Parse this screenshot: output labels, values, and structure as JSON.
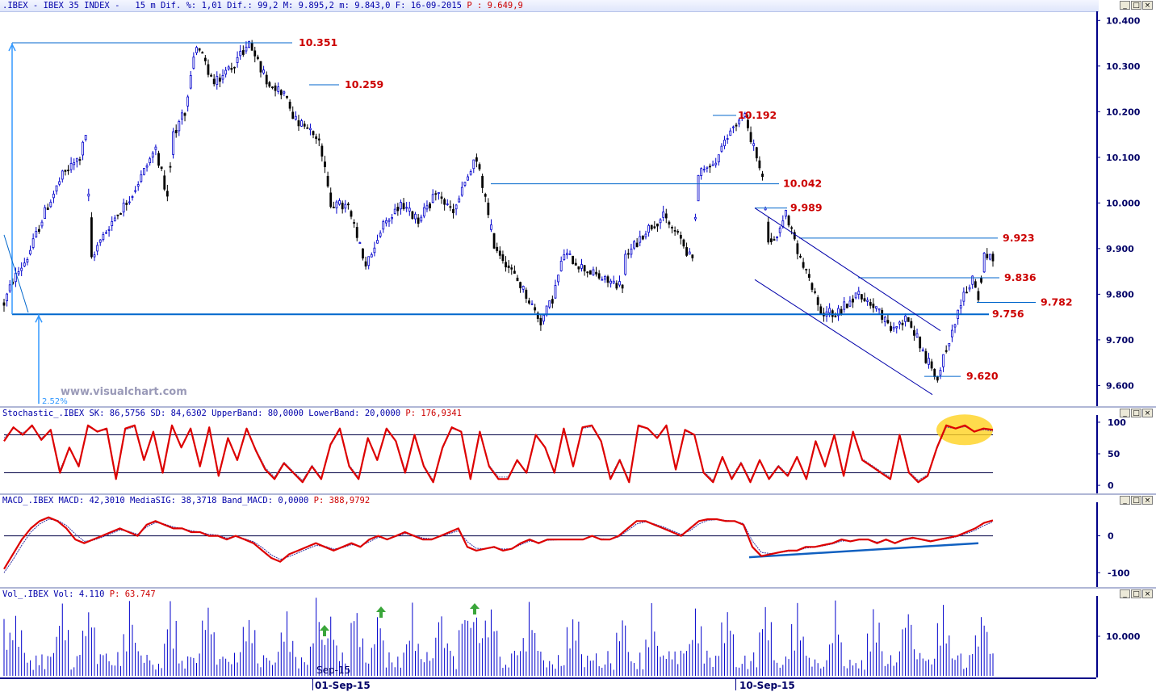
{
  "header": {
    "symbol": ".IBEX - IBEX 35 INDEX -",
    "interval": "15 m",
    "stats": "Dif. %: 1,01 Dif.: 99,2 M: 9.895,2 m: 9.843,0 F: 16-09-2015",
    "last": "P : 9.649,9"
  },
  "watermark": "www.visualchart.com",
  "pct_label": "2.52%",
  "panels": {
    "stochastic": {
      "prefix": "Stochastic_.IBEX SK: 86,5756 SD: 84,6302 UpperBand: 80,0000 LowerBand: 20,0000",
      "last": "P: 176,9341"
    },
    "macd": {
      "prefix": "MACD_.IBEX MACD: 42,3010 MediaSIG: 38,3718 Band_MACD: 0,0000",
      "last": "P: 388,9792"
    },
    "volume": {
      "prefix": "Vol_.IBEX Vol: 4.110",
      "last": "P: 63.747"
    }
  },
  "window_buttons": [
    "_",
    "□",
    "×"
  ],
  "x_axis": {
    "labels": [
      "01-Sep-15",
      "10-Sep-15"
    ],
    "overlay_label": "Sep-15"
  },
  "chart_data": [
    {
      "type": "candlestick",
      "panel": "price",
      "y_axis_ticks": [
        9600,
        9700,
        9800,
        9900,
        10000,
        10100,
        10200,
        10300,
        10400
      ],
      "y_axis_labels": [
        "9.600",
        "9.700",
        "9.800",
        "9.900",
        "10.000",
        "10.100",
        "10.200",
        "10.300",
        "10.400"
      ],
      "ylim": [
        9560,
        10420
      ],
      "bar_count": 340,
      "colors": {
        "up": "#0000cc",
        "down": "#000000",
        "levels": "#0066cc",
        "level_text": "#cc0000"
      },
      "anchors": [
        [
          0,
          9780
        ],
        [
          3,
          9830
        ],
        [
          8,
          9880
        ],
        [
          14,
          9980
        ],
        [
          20,
          10060
        ],
        [
          26,
          10100
        ],
        [
          28,
          10150
        ],
        [
          30,
          9880
        ],
        [
          36,
          9950
        ],
        [
          44,
          10020
        ],
        [
          52,
          10120
        ],
        [
          56,
          10010
        ],
        [
          58,
          10150
        ],
        [
          62,
          10200
        ],
        [
          66,
          10350
        ],
        [
          72,
          10260
        ],
        [
          78,
          10300
        ],
        [
          84,
          10350
        ],
        [
          90,
          10270
        ],
        [
          96,
          10240
        ],
        [
          100,
          10180
        ],
        [
          108,
          10140
        ],
        [
          112,
          10000
        ],
        [
          118,
          9990
        ],
        [
          124,
          9860
        ],
        [
          130,
          9950
        ],
        [
          136,
          10000
        ],
        [
          142,
          9960
        ],
        [
          148,
          10020
        ],
        [
          154,
          9980
        ],
        [
          162,
          10100
        ],
        [
          168,
          9910
        ],
        [
          174,
          9850
        ],
        [
          178,
          9810
        ],
        [
          184,
          9740
        ],
        [
          188,
          9790
        ],
        [
          192,
          9890
        ],
        [
          198,
          9860
        ],
        [
          206,
          9830
        ],
        [
          212,
          9820
        ],
        [
          213,
          9880
        ],
        [
          220,
          9940
        ],
        [
          226,
          9970
        ],
        [
          232,
          9920
        ],
        [
          236,
          9870
        ],
        [
          238,
          10060
        ],
        [
          244,
          10090
        ],
        [
          250,
          10170
        ],
        [
          254,
          10190
        ],
        [
          258,
          10100
        ],
        [
          260,
          10050
        ],
        [
          262,
          9920
        ],
        [
          266,
          9940
        ],
        [
          268,
          9980
        ],
        [
          272,
          9890
        ],
        [
          276,
          9830
        ],
        [
          280,
          9760
        ],
        [
          286,
          9760
        ],
        [
          292,
          9800
        ],
        [
          298,
          9780
        ],
        [
          304,
          9720
        ],
        [
          310,
          9750
        ],
        [
          316,
          9660
        ],
        [
          320,
          9620
        ],
        [
          324,
          9700
        ],
        [
          328,
          9780
        ],
        [
          332,
          9836
        ],
        [
          334,
          9790
        ],
        [
          336,
          9880
        ],
        [
          340,
          9880
        ]
      ],
      "levels": [
        {
          "value": 10351,
          "label": "10.351"
        },
        {
          "value": 10259,
          "label": "10.259"
        },
        {
          "value": 10192,
          "label": "10.192"
        },
        {
          "value": 10042,
          "label": "10.042"
        },
        {
          "value": 9989,
          "label": "9.989"
        },
        {
          "value": 9923,
          "label": "9.923"
        },
        {
          "value": 9836,
          "label": "9.836"
        },
        {
          "value": 9782,
          "label": "9.782"
        },
        {
          "value": 9756,
          "label": "9.756"
        },
        {
          "value": 9620,
          "label": "9.620"
        }
      ]
    },
    {
      "type": "line",
      "panel": "stochastic",
      "y_axis_ticks": [
        0,
        50,
        100
      ],
      "y_axis_labels": [
        "0",
        "50",
        "100"
      ],
      "ylim": [
        -5,
        105
      ],
      "bands": [
        20,
        80
      ],
      "series": [
        {
          "color": "#dd0000",
          "values": [
            70,
            92,
            80,
            95,
            72,
            88,
            20,
            60,
            30,
            95,
            85,
            90,
            10,
            90,
            95,
            40,
            85,
            20,
            95,
            60,
            90,
            30,
            92,
            15,
            75,
            40,
            90,
            55,
            25,
            10,
            35,
            20,
            5,
            30,
            10,
            65,
            90,
            30,
            10,
            75,
            40,
            90,
            70,
            20,
            80,
            30,
            5,
            60,
            92,
            85,
            10,
            85,
            30,
            10,
            10,
            40,
            20,
            80,
            60,
            20,
            90,
            30,
            92,
            95,
            70,
            10,
            40,
            5,
            95,
            90,
            75,
            95,
            25,
            88,
            80,
            20,
            5,
            45,
            10,
            35,
            5,
            40,
            10,
            30,
            15,
            45,
            10,
            70,
            30,
            80,
            15,
            85,
            40,
            30,
            20,
            10,
            80,
            20,
            5,
            15,
            60,
            95,
            90,
            95,
            85,
            90,
            88
          ]
        },
        {
          "color": "#6060a0",
          "values": [
            75,
            90,
            83,
            93,
            75,
            86,
            25,
            58,
            33,
            93,
            86,
            88,
            14,
            88,
            93,
            43,
            83,
            24,
            93,
            62,
            88,
            33,
            90,
            18,
            73,
            42,
            88,
            57,
            28,
            13,
            37,
            22,
            8,
            32,
            12,
            63,
            88,
            32,
            13,
            73,
            42,
            88,
            70,
            24,
            78,
            32,
            8,
            58,
            90,
            85,
            13,
            83,
            32,
            13,
            13,
            38,
            22,
            78,
            60,
            22,
            88,
            32,
            90,
            93,
            70,
            13,
            42,
            8,
            93,
            90,
            76,
            93,
            27,
            86,
            80,
            22,
            8,
            43,
            13,
            37,
            8,
            40,
            12,
            32,
            17,
            45,
            12,
            68,
            32,
            78,
            17,
            83,
            42,
            32,
            22,
            13,
            78,
            22,
            8,
            17,
            58,
            92,
            90,
            93,
            86,
            88,
            86
          ]
        }
      ]
    },
    {
      "type": "line",
      "panel": "macd",
      "y_axis_ticks": [
        -100,
        0
      ],
      "y_axis_labels": [
        "-100",
        "0"
      ],
      "ylim": [
        -130,
        80
      ],
      "series": [
        {
          "name": "MACD",
          "color": "#dd0000",
          "values": [
            -90,
            -50,
            -10,
            20,
            40,
            50,
            40,
            20,
            -10,
            -20,
            -10,
            0,
            10,
            20,
            10,
            0,
            30,
            40,
            30,
            20,
            20,
            10,
            10,
            0,
            0,
            -10,
            0,
            -10,
            -20,
            -40,
            -60,
            -70,
            -50,
            -40,
            -30,
            -20,
            -30,
            -40,
            -30,
            -20,
            -30,
            -10,
            0,
            -10,
            0,
            10,
            0,
            -10,
            -10,
            0,
            10,
            20,
            -30,
            -40,
            -35,
            -30,
            -40,
            -35,
            -20,
            -10,
            -20,
            -10,
            -10,
            -10,
            -10,
            -10,
            0,
            -10,
            -10,
            0,
            20,
            40,
            40,
            30,
            20,
            10,
            0,
            20,
            40,
            45,
            45,
            40,
            40,
            30,
            -30,
            -55,
            -50,
            -45,
            -40,
            -40,
            -30,
            -30,
            -25,
            -20,
            -10,
            -15,
            -10,
            -10,
            -20,
            -10,
            -20,
            -10,
            -5,
            -10,
            -15,
            -10,
            -5,
            0,
            10,
            20,
            35,
            42
          ]
        },
        {
          "name": "MediaSIG",
          "color": "#3030a0",
          "values": [
            -100,
            -65,
            -25,
            10,
            32,
            45,
            42,
            28,
            5,
            -15,
            -12,
            -4,
            6,
            16,
            12,
            4,
            24,
            36,
            32,
            24,
            20,
            14,
            10,
            4,
            2,
            -6,
            -2,
            -8,
            -16,
            -32,
            -52,
            -64,
            -56,
            -46,
            -36,
            -26,
            -28,
            -36,
            -32,
            -24,
            -28,
            -16,
            -4,
            -8,
            -2,
            6,
            2,
            -6,
            -8,
            -2,
            6,
            14,
            -16,
            -34,
            -35,
            -32,
            -36,
            -35,
            -24,
            -14,
            -18,
            -12,
            -11,
            -10,
            -10,
            -10,
            -2,
            -8,
            -9,
            -3,
            14,
            32,
            38,
            32,
            24,
            14,
            4,
            14,
            32,
            42,
            44,
            42,
            40,
            33,
            -14,
            -45,
            -48,
            -46,
            -42,
            -41,
            -33,
            -31,
            -27,
            -22,
            -14,
            -14,
            -11,
            -10,
            -17,
            -12,
            -18,
            -12,
            -7,
            -9,
            -13,
            -11,
            -7,
            -2,
            6,
            15,
            28,
            38
          ]
        }
      ]
    },
    {
      "type": "bar",
      "panel": "volume",
      "y_axis_ticks": [
        10000
      ],
      "y_axis_labels": [
        "10.000"
      ],
      "ylim": [
        0,
        20000
      ],
      "bar_count": 340,
      "color": "#0000cc"
    }
  ]
}
